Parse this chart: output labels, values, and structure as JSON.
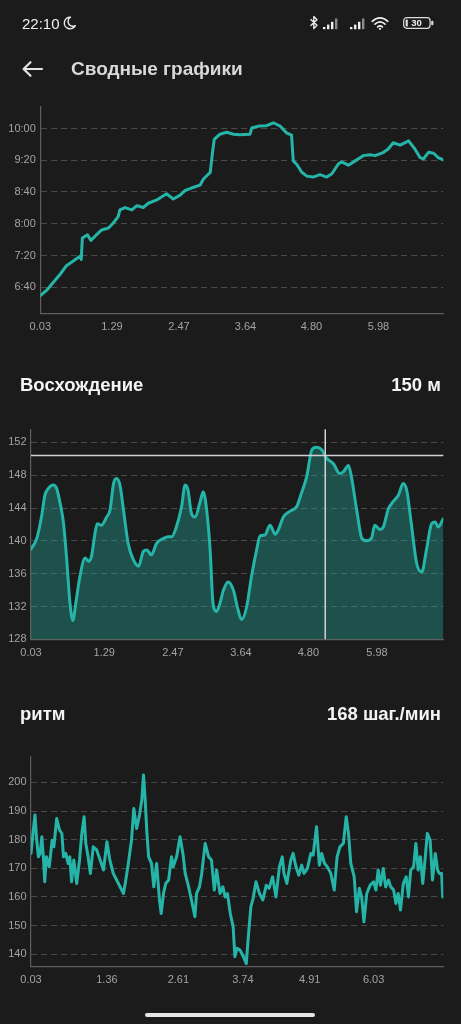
{
  "chart_data": [
    {
      "type": "line",
      "title": "Сводные графики",
      "annotations": [
        "22:10",
        "30"
      ],
      "color": "#25b5a8",
      "x": [
        0.03,
        0.14,
        0.26,
        0.38,
        0.49,
        0.61,
        0.73,
        0.75,
        0.77,
        0.86,
        0.92,
        1.02,
        1.11,
        1.23,
        1.31,
        1.4,
        1.43,
        1.52,
        1.64,
        1.73,
        1.84,
        1.93,
        2.08,
        2.25,
        2.37,
        2.49,
        2.58,
        2.69,
        2.84,
        2.9,
        3.02,
        3.06,
        3.09,
        3.19,
        3.31,
        3.43,
        3.54,
        3.72,
        3.75,
        3.87,
        4.01,
        4.13,
        4.25,
        4.36,
        4.45,
        4.48,
        4.54,
        4.63,
        4.72,
        4.83,
        4.95,
        5.07,
        5.16,
        5.27,
        5.33,
        5.45,
        5.57,
        5.71,
        5.83,
        5.92,
        6.07,
        6.15,
        6.24,
        6.36,
        6.51,
        6.62,
        6.71,
        6.77,
        6.86,
        6.95,
        7.03,
        7.12
      ],
      "values": [
        6.49,
        6.6,
        6.77,
        6.94,
        7.12,
        7.22,
        7.32,
        7.25,
        7.7,
        7.77,
        7.65,
        7.77,
        7.87,
        7.91,
        8.01,
        8.15,
        8.29,
        8.34,
        8.29,
        8.38,
        8.34,
        8.43,
        8.5,
        8.63,
        8.52,
        8.6,
        8.7,
        8.75,
        8.81,
        8.94,
        9.08,
        9.5,
        9.77,
        9.88,
        9.92,
        9.88,
        9.87,
        9.88,
        10.01,
        10.05,
        10.06,
        10.12,
        10.05,
        9.91,
        9.86,
        9.32,
        9.25,
        9.08,
        9.0,
        8.98,
        9.03,
        8.98,
        9.05,
        9.25,
        9.3,
        9.23,
        9.32,
        9.43,
        9.45,
        9.43,
        9.5,
        9.57,
        9.7,
        9.65,
        9.74,
        9.57,
        9.39,
        9.36,
        9.5,
        9.48,
        9.39,
        9.34
      ],
      "xlim": [
        0.03,
        7.12
      ],
      "xticks": [
        0.03,
        1.29,
        2.47,
        3.64,
        {
          "value": 4.8,
          "label": "4.80"
        },
        5.98
      ],
      "ylim": [
        6.12,
        10.47
      ],
      "yticks": [
        {
          "value": 6.667,
          "label": "6:40"
        },
        {
          "value": 7.333,
          "label": "7:20"
        },
        {
          "value": 8,
          "label": "8:00"
        },
        {
          "value": 8.667,
          "label": "8:40"
        },
        {
          "value": 9.333,
          "label": "9:20"
        },
        {
          "value": 10,
          "label": "10:00"
        }
      ],
      "grid": "y"
    },
    {
      "type": "area",
      "title": "Восхождение",
      "subtitle": "150 м",
      "color": "#25b5a8",
      "x": [
        0.03,
        0.13,
        0.21,
        0.27,
        0.33,
        0.41,
        0.47,
        0.53,
        0.59,
        0.64,
        0.7,
        0.75,
        0.8,
        0.87,
        0.96,
        1.02,
        1.07,
        1.13,
        1.17,
        1.24,
        1.33,
        1.39,
        1.45,
        1.5,
        1.56,
        1.62,
        1.7,
        1.79,
        1.88,
        1.96,
        2.02,
        2.1,
        2.19,
        2.31,
        2.39,
        2.45,
        2.53,
        2.62,
        2.68,
        2.73,
        2.79,
        2.85,
        2.94,
        2.99,
        3.05,
        3.11,
        3.16,
        3.22,
        3.28,
        3.34,
        3.42,
        3.51,
        3.59,
        3.65,
        3.74,
        3.82,
        3.91,
        3.97,
        4.05,
        4.14,
        4.23,
        4.28,
        4.37,
        4.48,
        4.6,
        4.68,
        4.77,
        4.86,
        4.94,
        5.03,
        5.11,
        5.23,
        5.34,
        5.4,
        5.49,
        5.54,
        5.63,
        5.72,
        5.8,
        5.89,
        5.94,
        6.03,
        6.09,
        6.17,
        6.26,
        6.35,
        6.43,
        6.49,
        6.57,
        6.66,
        6.75,
        6.83,
        6.92,
        6.98,
        7.03,
        7.12
      ],
      "values": [
        139.0,
        140.3,
        142.9,
        145.6,
        146.4,
        146.8,
        146.4,
        144.6,
        142.1,
        138.1,
        132.4,
        130.3,
        132.4,
        135.6,
        137.9,
        137.5,
        138.1,
        140.9,
        142.1,
        141.9,
        142.9,
        143.8,
        147.0,
        147.6,
        146.8,
        143.8,
        139.7,
        137.7,
        136.9,
        138.7,
        138.9,
        138.3,
        139.7,
        140.3,
        140.5,
        140.5,
        141.7,
        144.2,
        146.8,
        146.2,
        143.3,
        142.9,
        144.8,
        146.0,
        143.8,
        138.9,
        132.4,
        131.4,
        132.4,
        134.0,
        135.0,
        134.0,
        131.6,
        130.4,
        132.0,
        135.6,
        138.9,
        140.6,
        140.7,
        141.9,
        140.8,
        141.3,
        142.9,
        143.6,
        144.2,
        145.8,
        147.8,
        151.1,
        151.4,
        151.1,
        150.1,
        149.4,
        148.2,
        148.4,
        149.2,
        147.8,
        143.8,
        140.3,
        140.0,
        140.4,
        141.9,
        141.4,
        141.7,
        143.8,
        144.8,
        145.6,
        147.0,
        146.2,
        142.1,
        137.3,
        136.2,
        138.9,
        142.1,
        142.3,
        141.7,
        142.7
      ],
      "xlim": [
        0.03,
        7.12
      ],
      "xticks": [
        0.03,
        1.29,
        2.47,
        3.64,
        {
          "value": 4.8,
          "label": "4.80"
        },
        5.98
      ],
      "ylim": [
        128,
        153.6
      ],
      "yticks": [
        128,
        132,
        136,
        140,
        144,
        148,
        152
      ],
      "grid": "y",
      "ref_lines": [
        {
          "axis": "y",
          "value": 150.4,
          "color": "#d2d2d2"
        },
        {
          "axis": "x",
          "value": 5.09,
          "color": "#d2d2d2"
        }
      ]
    },
    {
      "type": "line",
      "title": "ритм",
      "subtitle": "168 шаг./мин",
      "color": "#25b5a8",
      "x": [
        0.03,
        0.07,
        0.1,
        0.13,
        0.16,
        0.19,
        0.22,
        0.25,
        0.27,
        0.3,
        0.35,
        0.4,
        0.43,
        0.48,
        0.53,
        0.57,
        0.6,
        0.64,
        0.68,
        0.71,
        0.74,
        0.78,
        0.83,
        0.88,
        0.92,
        0.96,
        0.99,
        1.03,
        1.07,
        1.12,
        1.18,
        1.24,
        1.3,
        1.36,
        1.41,
        1.47,
        1.53,
        1.59,
        1.65,
        1.69,
        1.73,
        1.79,
        1.83,
        1.88,
        1.93,
        1.97,
        2.0,
        2.03,
        2.06,
        2.09,
        2.14,
        2.18,
        2.23,
        2.28,
        2.31,
        2.35,
        2.39,
        2.44,
        2.49,
        2.52,
        2.58,
        2.64,
        2.69,
        2.73,
        2.79,
        2.84,
        2.9,
        2.93,
        2.98,
        3.02,
        3.08,
        3.14,
        3.19,
        3.24,
        3.28,
        3.34,
        3.39,
        3.43,
        3.47,
        3.52,
        3.57,
        3.6,
        3.64,
        3.69,
        3.75,
        3.8,
        3.84,
        3.88,
        3.92,
        3.97,
        4.03,
        4.09,
        4.15,
        4.2,
        4.26,
        4.32,
        4.38,
        4.43,
        4.46,
        4.51,
        4.58,
        4.62,
        4.67,
        4.72,
        4.77,
        4.81,
        4.87,
        4.93,
        4.97,
        5.03,
        5.08,
        5.12,
        5.17,
        5.22,
        5.28,
        5.34,
        5.39,
        5.44,
        5.5,
        5.55,
        5.59,
        5.63,
        5.69,
        5.73,
        5.78,
        5.82,
        5.86,
        5.91,
        5.97,
        6.03,
        6.07,
        6.11,
        6.15,
        6.2,
        6.24,
        6.29,
        6.33,
        6.38,
        6.42,
        6.46,
        6.5,
        6.55,
        6.6,
        6.64,
        6.68,
        6.73,
        6.77,
        6.81,
        6.85,
        6.89,
        6.93,
        6.97,
        7.02,
        7.06,
        7.11,
        7.15,
        7.18,
        7.22,
        7.24
      ],
      "values": [
        175.2,
        183.3,
        188.6,
        179.8,
        174.0,
        175.2,
        181.0,
        172.9,
        165.3,
        174.0,
        170.5,
        179.8,
        177.5,
        187.4,
        183.3,
        182.2,
        174.0,
        175.2,
        171.7,
        174.0,
        165.3,
        172.9,
        164.7,
        172.9,
        182.2,
        188.0,
        178.7,
        174.0,
        168.2,
        177.5,
        176.4,
        172.9,
        169.4,
        179.3,
        172.9,
        168.2,
        165.9,
        163.5,
        161.2,
        165.9,
        171.1,
        179.8,
        190.9,
        183.9,
        188.6,
        193.8,
        202.6,
        193.8,
        182.2,
        174.0,
        171.7,
        163.5,
        171.7,
        158.9,
        154.2,
        161.2,
        164.7,
        165.9,
        174.0,
        170.5,
        174.0,
        181.0,
        175.2,
        168.2,
        163.5,
        158.9,
        153.1,
        161.2,
        163.5,
        168.2,
        178.7,
        174.0,
        172.9,
        162.4,
        169.4,
        161.2,
        163.5,
        160.0,
        161.2,
        154.2,
        149.5,
        139.1,
        142.0,
        141.4,
        139.1,
        136.7,
        147.2,
        156.5,
        159.5,
        165.3,
        161.2,
        158.9,
        164.1,
        163.0,
        167.0,
        160.0,
        170.5,
        174.0,
        168.2,
        164.7,
        172.9,
        175.2,
        170.5,
        167.6,
        171.1,
        168.2,
        169.9,
        175.2,
        174.6,
        184.5,
        171.1,
        175.2,
        171.7,
        170.5,
        168.2,
        162.4,
        174.0,
        177.5,
        178.7,
        188.0,
        182.2,
        171.7,
        167.0,
        154.8,
        163.0,
        160.0,
        151.3,
        161.2,
        164.1,
        165.3,
        162.4,
        169.4,
        164.1,
        169.9,
        163.5,
        165.9,
        163.5,
        162.4,
        157.7,
        161.2,
        155.4,
        164.7,
        167.0,
        160.0,
        169.4,
        170.5,
        178.7,
        169.4,
        174.0,
        164.7,
        172.9,
        182.2,
        179.8,
        165.9,
        175.2,
        169.4,
        168.2,
        168.2,
        160.0
      ],
      "xlim": [
        0.03,
        7.25
      ],
      "xticks": [
        0.03,
        1.36,
        2.61,
        3.74,
        4.91,
        6.03
      ],
      "ylim": [
        135.6,
        209
      ],
      "yticks": [
        140,
        150,
        160,
        170,
        180,
        190,
        200
      ],
      "grid": "y"
    }
  ]
}
